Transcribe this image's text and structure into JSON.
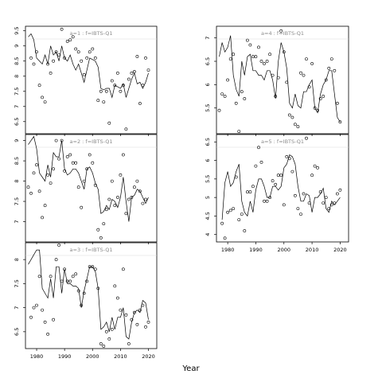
{
  "chart_data": {
    "type": "scatter",
    "xlabel": "Year",
    "x_ticks": [
      1980,
      1990,
      2000,
      2010,
      2020
    ],
    "marker": "open-circle",
    "line_color": "#000000",
    "strip_text_color": "#8c8c8c",
    "panels": [
      {
        "title": "a=1 : f=IBTS-Q1",
        "xlim": [
          1976,
          2023
        ],
        "ylim": [
          6.1,
          9.65
        ],
        "yticks": [
          6.5,
          7.0,
          7.5,
          8.0,
          8.5,
          9.0,
          9.5
        ],
        "line": {
          "x": [
            1977,
            1978,
            1979,
            1980,
            1981,
            1982,
            1983,
            1984,
            1985,
            1986,
            1987,
            1988,
            1989,
            1990,
            1991,
            1992,
            1993,
            1994,
            1995,
            1996,
            1997,
            1998,
            1999,
            2000,
            2001,
            2002,
            2003,
            2004,
            2005,
            2006,
            2007,
            2008,
            2009,
            2010,
            2011,
            2012,
            2013,
            2014,
            2015,
            2016,
            2017,
            2018,
            2019,
            2020
          ],
          "y": [
            9.3,
            9.4,
            9.2,
            8.6,
            8.5,
            8.4,
            8.7,
            8.4,
            9.0,
            8.7,
            8.8,
            8.5,
            9.0,
            8.6,
            8.5,
            8.7,
            8.4,
            8.2,
            8.4,
            8.1,
            7.8,
            8.2,
            8.6,
            8.55,
            8.5,
            8.3,
            7.6,
            7.55,
            7.6,
            7.6,
            7.3,
            7.7,
            7.65,
            7.6,
            7.75,
            7.3,
            7.6,
            7.9,
            8.1,
            7.75,
            7.8,
            7.6,
            7.8,
            8.1
          ]
        },
        "points": {
          "x": [
            1978,
            1979,
            1980,
            1981,
            1982,
            1983,
            1984,
            1985,
            1986,
            1987,
            1988,
            1989,
            1990,
            1991,
            1992,
            1993,
            1994,
            1995,
            1996,
            1997,
            1998,
            1999,
            2000,
            2001,
            2002,
            2003,
            2004,
            2005,
            2006,
            2007,
            2008,
            2009,
            2010,
            2011,
            2012,
            2013,
            2014,
            2015,
            2016,
            2017,
            2018,
            2019,
            2020
          ],
          "y": [
            8.6,
            8.4,
            8.8,
            7.7,
            7.3,
            7.15,
            8.4,
            8.1,
            8.5,
            8.8,
            8.7,
            9.55,
            8.6,
            9.15,
            9.2,
            9.3,
            8.9,
            8.8,
            8.5,
            8.05,
            8.6,
            8.8,
            8.9,
            8.6,
            7.2,
            7.5,
            7.15,
            7.5,
            6.45,
            7.85,
            7.7,
            8.1,
            7.5,
            7.7,
            6.25,
            7.9,
            8.1,
            8.15,
            8.65,
            7.1,
            7.7,
            8.6,
            8.2
          ]
        }
      },
      {
        "title": "a=2 : f=IBTS-Q1",
        "xlim": [
          1976,
          2023
        ],
        "ylim": [
          6.5,
          9.15
        ],
        "yticks": [
          7.0,
          7.5,
          8.0,
          8.5,
          9.0
        ],
        "line": {
          "x": [
            1977,
            1978,
            1979,
            1980,
            1981,
            1982,
            1983,
            1984,
            1985,
            1986,
            1987,
            1988,
            1989,
            1990,
            1991,
            1992,
            1993,
            1994,
            1995,
            1996,
            1997,
            1998,
            1999,
            2000,
            2001,
            2002,
            2003,
            2004,
            2005,
            2006,
            2007,
            2008,
            2009,
            2010,
            2011,
            2012,
            2013,
            2014,
            2015,
            2016,
            2017,
            2018,
            2019,
            2020
          ],
          "y": [
            8.9,
            9.0,
            9.1,
            8.8,
            8.2,
            8.1,
            8.0,
            8.4,
            8.1,
            8.7,
            8.6,
            8.6,
            9.0,
            8.3,
            8.15,
            8.2,
            8.3,
            8.3,
            8.2,
            8.0,
            7.8,
            8.3,
            8.35,
            8.2,
            7.95,
            7.8,
            7.2,
            7.25,
            7.4,
            7.3,
            7.55,
            7.5,
            7.35,
            7.6,
            8.1,
            7.5,
            7.0,
            7.6,
            7.65,
            7.8,
            7.75,
            7.6,
            7.45,
            7.6
          ]
        },
        "points": {
          "x": [
            1977,
            1978,
            1979,
            1980,
            1981,
            1982,
            1983,
            1984,
            1985,
            1986,
            1987,
            1988,
            1989,
            1990,
            1991,
            1992,
            1993,
            1994,
            1995,
            1996,
            1997,
            1998,
            1999,
            2000,
            2001,
            2002,
            2003,
            2004,
            2005,
            2006,
            2007,
            2008,
            2009,
            2010,
            2011,
            2012,
            2013,
            2014,
            2015,
            2016,
            2017,
            2018,
            2019
          ],
          "y": [
            7.85,
            7.7,
            8.2,
            8.4,
            7.75,
            7.1,
            7.4,
            8.15,
            7.95,
            8.3,
            9.0,
            8.55,
            9.0,
            8.25,
            8.6,
            8.65,
            8.45,
            8.45,
            7.85,
            7.35,
            8.0,
            8.3,
            8.65,
            8.45,
            7.9,
            6.8,
            6.6,
            6.95,
            7.3,
            7.55,
            8.0,
            7.4,
            7.6,
            8.15,
            8.65,
            7.2,
            7.55,
            7.6,
            7.85,
            8.0,
            7.75,
            7.45,
            7.55
          ]
        }
      },
      {
        "title": "a=3 : f=IBTS-Q1",
        "xlim": [
          1976,
          2023
        ],
        "ylim": [
          6.15,
          8.35
        ],
        "yticks": [
          6.5,
          7.0,
          7.5,
          8.0
        ],
        "line": {
          "x": [
            1977,
            1978,
            1979,
            1980,
            1981,
            1982,
            1983,
            1984,
            1985,
            1986,
            1987,
            1988,
            1989,
            1990,
            1991,
            1992,
            1993,
            1994,
            1995,
            1996,
            1997,
            1998,
            1999,
            2000,
            2001,
            2002,
            2003,
            2004,
            2005,
            2006,
            2007,
            2008,
            2009,
            2010,
            2011,
            2012,
            2013,
            2014,
            2015,
            2016,
            2017,
            2018,
            2019,
            2020
          ],
          "y": [
            7.9,
            8.0,
            8.1,
            8.2,
            8.2,
            7.4,
            7.3,
            7.2,
            7.6,
            7.2,
            7.85,
            7.85,
            7.3,
            7.8,
            7.5,
            7.5,
            7.45,
            7.45,
            7.4,
            7.0,
            7.35,
            7.6,
            7.85,
            7.85,
            7.75,
            7.4,
            6.55,
            6.6,
            6.7,
            6.5,
            6.8,
            6.55,
            6.8,
            6.8,
            7.0,
            6.4,
            6.35,
            6.7,
            6.9,
            6.95,
            6.9,
            7.15,
            7.1,
            6.75
          ]
        },
        "points": {
          "x": [
            1978,
            1979,
            1980,
            1981,
            1982,
            1983,
            1984,
            1985,
            1986,
            1987,
            1988,
            1989,
            1990,
            1991,
            1992,
            1993,
            1994,
            1995,
            1996,
            1997,
            1998,
            1999,
            2000,
            2001,
            2002,
            2003,
            2004,
            2005,
            2006,
            2007,
            2008,
            2009,
            2010,
            2011,
            2012,
            2013,
            2014,
            2015,
            2016,
            2017,
            2018,
            2019,
            2020
          ],
          "y": [
            6.8,
            7.0,
            7.05,
            7.65,
            6.95,
            6.7,
            6.45,
            7.65,
            6.75,
            8.0,
            8.3,
            7.55,
            7.8,
            7.55,
            7.55,
            7.65,
            7.7,
            7.35,
            7.05,
            7.3,
            7.55,
            7.85,
            7.85,
            7.8,
            7.4,
            6.25,
            6.2,
            6.5,
            6.35,
            6.55,
            7.45,
            7.2,
            6.95,
            7.8,
            6.85,
            6.25,
            6.75,
            6.9,
            6.65,
            6.95,
            7.05,
            6.6,
            6.7
          ]
        }
      },
      {
        "title": "a=4 : f=IBTS-Q1",
        "xlim": [
          1976,
          2023
        ],
        "ylim": [
          4.95,
          7.25
        ],
        "yticks": [
          5.5,
          6.0,
          6.5,
          7.0
        ],
        "line": {
          "x": [
            1977,
            1978,
            1979,
            1980,
            1981,
            1982,
            1983,
            1984,
            1985,
            1986,
            1987,
            1988,
            1989,
            1990,
            1991,
            1992,
            1993,
            1994,
            1995,
            1996,
            1997,
            1998,
            1999,
            2000,
            2001,
            2002,
            2003,
            2004,
            2005,
            2006,
            2007,
            2008,
            2009,
            2010,
            2011,
            2012,
            2013,
            2014,
            2015,
            2016,
            2017,
            2018,
            2019,
            2020
          ],
          "y": [
            6.6,
            6.9,
            6.7,
            6.8,
            7.05,
            6.2,
            5.9,
            5.75,
            6.5,
            6.2,
            6.6,
            6.65,
            6.3,
            6.3,
            6.2,
            6.2,
            6.1,
            6.3,
            6.3,
            6.1,
            5.7,
            6.5,
            6.9,
            6.7,
            6.35,
            5.6,
            5.5,
            5.8,
            5.55,
            5.5,
            5.85,
            5.85,
            6.0,
            6.1,
            5.5,
            5.4,
            5.8,
            6.0,
            6.1,
            6.3,
            6.3,
            5.8,
            5.3,
            5.2
          ]
        },
        "points": {
          "x": [
            1977,
            1978,
            1979,
            1980,
            1981,
            1982,
            1983,
            1984,
            1985,
            1986,
            1987,
            1988,
            1989,
            1990,
            1991,
            1992,
            1993,
            1994,
            1995,
            1996,
            1997,
            1998,
            1999,
            2000,
            2001,
            2002,
            2003,
            2004,
            2005,
            2006,
            2007,
            2008,
            2009,
            2010,
            2011,
            2012,
            2013,
            2014,
            2015,
            2016,
            2017,
            2018,
            2019,
            2020
          ],
          "y": [
            5.45,
            5.8,
            5.75,
            6.1,
            6.55,
            6.65,
            5.6,
            5.0,
            5.85,
            5.7,
            6.95,
            6.85,
            6.6,
            6.6,
            6.8,
            6.5,
            6.45,
            6.5,
            6.65,
            6.2,
            5.75,
            6.15,
            7.15,
            6.7,
            6.05,
            5.35,
            5.3,
            5.15,
            5.1,
            6.25,
            6.2,
            6.55,
            5.95,
            6.45,
            5.5,
            5.45,
            5.7,
            5.75,
            6.1,
            6.35,
            6.55,
            6.3,
            5.6,
            5.2
          ]
        }
      },
      {
        "title": "a=5 : f=IBTS-Q1",
        "xlim": [
          1976,
          2023
        ],
        "ylim": [
          3.8,
          6.7
        ],
        "yticks": [
          4.0,
          4.5,
          5.0,
          5.5,
          6.0,
          6.5
        ],
        "line": {
          "x": [
            1978,
            1979,
            1980,
            1981,
            1982,
            1983,
            1984,
            1985,
            1986,
            1987,
            1988,
            1989,
            1990,
            1991,
            1992,
            1993,
            1994,
            1995,
            1996,
            1997,
            1998,
            1999,
            2000,
            2001,
            2002,
            2003,
            2004,
            2005,
            2006,
            2007,
            2008,
            2009,
            2010,
            2011,
            2012,
            2013,
            2014,
            2015,
            2016,
            2017,
            2018,
            2019,
            2020
          ],
          "y": [
            4.4,
            5.4,
            5.7,
            5.3,
            5.4,
            5.7,
            5.9,
            4.9,
            4.6,
            4.5,
            4.9,
            4.6,
            5.2,
            5.5,
            5.5,
            5.3,
            5.0,
            5.0,
            5.3,
            5.3,
            5.2,
            5.3,
            5.8,
            5.9,
            6.15,
            6.1,
            5.9,
            5.3,
            4.9,
            4.9,
            5.1,
            5.05,
            4.6,
            5.0,
            5.0,
            5.1,
            5.25,
            4.7,
            4.6,
            4.9,
            4.8,
            4.9,
            5.0
          ]
        },
        "points": {
          "x": [
            1978,
            1979,
            1980,
            1981,
            1982,
            1983,
            1984,
            1985,
            1986,
            1987,
            1988,
            1989,
            1990,
            1991,
            1992,
            1993,
            1994,
            1995,
            1996,
            1997,
            1998,
            1999,
            2000,
            2001,
            2002,
            2003,
            2004,
            2005,
            2006,
            2007,
            2008,
            2009,
            2010,
            2011,
            2012,
            2013,
            2014,
            2015,
            2016,
            2017,
            2018,
            2019,
            2020
          ],
          "y": [
            4.3,
            3.9,
            4.6,
            4.65,
            4.7,
            5.55,
            4.4,
            4.55,
            4.1,
            5.15,
            5.15,
            5.3,
            5.85,
            6.35,
            5.95,
            4.9,
            4.9,
            5.0,
            5.45,
            5.35,
            5.6,
            5.6,
            4.8,
            6.1,
            6.05,
            5.7,
            5.05,
            4.7,
            4.55,
            5.1,
            6.6,
            4.85,
            5.6,
            5.85,
            5.8,
            5.15,
            4.85,
            5.0,
            4.7,
            4.8,
            4.85,
            5.1,
            5.2
          ]
        }
      }
    ]
  }
}
